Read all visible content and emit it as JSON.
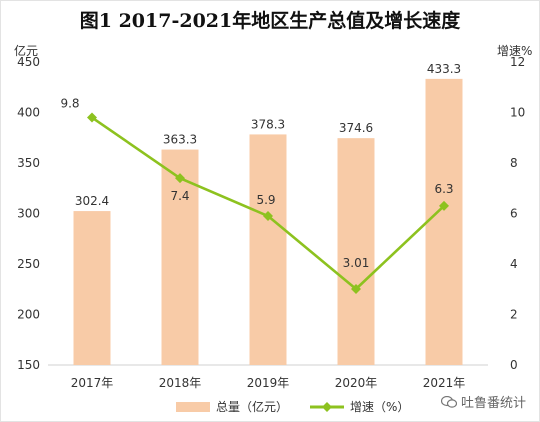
{
  "chart_data": {
    "type": "bar+line",
    "title": "图1 2017-2021年地区生产总值及增长速度",
    "categories": [
      "2017年",
      "2018年",
      "2019年",
      "2020年",
      "2021年"
    ],
    "series": [
      {
        "name": "总量（亿元）",
        "type": "bar",
        "axis": "left",
        "values": [
          302.4,
          363.3,
          378.3,
          374.6,
          433.3
        ],
        "color": "#f8cba7"
      },
      {
        "name": "增速（%）",
        "type": "line",
        "axis": "right",
        "values": [
          9.8,
          7.4,
          5.9,
          3.01,
          6.3
        ],
        "color": "#8dc21f"
      }
    ],
    "bar_labels": [
      "302.4",
      "363.3",
      "378.3",
      "374.6",
      "433.3"
    ],
    "line_labels": [
      "9.8",
      "7.4",
      "5.9",
      "3.01",
      "6.3"
    ],
    "y_left": {
      "label": "亿元",
      "ylim": [
        150,
        450
      ],
      "ticks": [
        150,
        200,
        250,
        300,
        350,
        400,
        450
      ]
    },
    "y_right": {
      "label": "增速%",
      "ylim": [
        0,
        12
      ],
      "ticks": [
        0,
        2,
        4,
        6,
        8,
        10,
        12
      ]
    },
    "grid": false,
    "legend_position": "bottom"
  },
  "legend": {
    "bar_label": "总量（亿元）",
    "line_label": "增速（%）"
  },
  "watermark": "吐鲁番统计"
}
